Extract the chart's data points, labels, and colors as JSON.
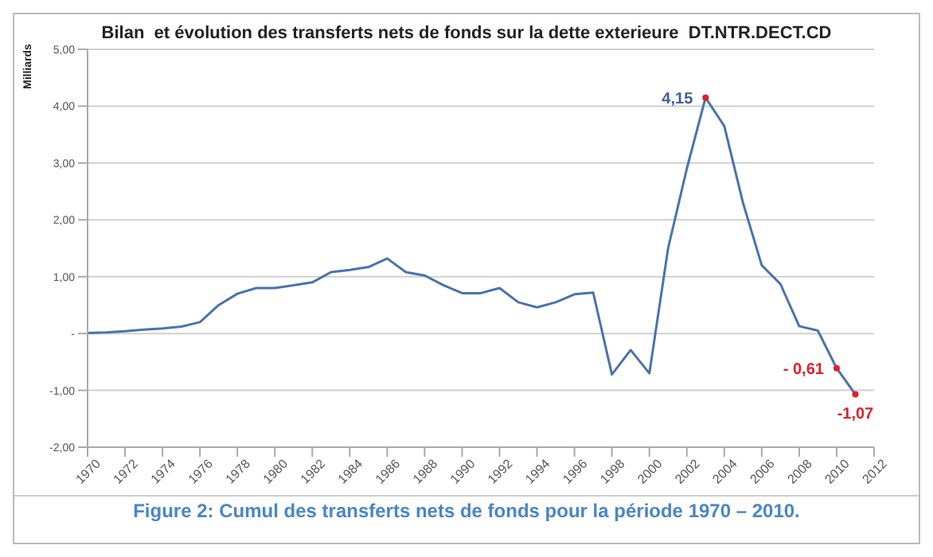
{
  "chart_data": {
    "type": "line",
    "title": "Bilan  et évolution des transferts nets de fonds sur la dette exterieure  DT.NTR.DECT.CD",
    "ylabel": "Milliards",
    "x": [
      1970,
      1971,
      1972,
      1973,
      1974,
      1975,
      1976,
      1977,
      1978,
      1979,
      1980,
      1981,
      1982,
      1983,
      1984,
      1985,
      1986,
      1987,
      1988,
      1989,
      1990,
      1991,
      1992,
      1993,
      1994,
      1995,
      1996,
      1997,
      1998,
      1999,
      2000,
      2001,
      2002,
      2003,
      2004,
      2005,
      2006,
      2007,
      2008,
      2009,
      2010,
      2011
    ],
    "series": [
      {
        "color": "#4a73ad",
        "values": [
          0.01,
          0.02,
          0.04,
          0.07,
          0.09,
          0.12,
          0.2,
          0.5,
          0.7,
          0.8,
          0.8,
          0.85,
          0.9,
          1.08,
          1.12,
          1.17,
          1.32,
          1.08,
          1.02,
          0.85,
          0.71,
          0.71,
          0.8,
          0.55,
          0.46,
          0.55,
          0.69,
          0.72,
          -0.72,
          -0.29,
          -0.7,
          1.5,
          2.9,
          4.15,
          3.65,
          2.3,
          1.2,
          0.87,
          0.13,
          0.05,
          -0.61,
          -1.07
        ]
      }
    ],
    "xlim": [
      1970,
      2012
    ],
    "xticks": [
      1970,
      1972,
      1974,
      1976,
      1978,
      1980,
      1982,
      1984,
      1986,
      1988,
      1990,
      1992,
      1994,
      1996,
      1998,
      2000,
      2002,
      2004,
      2006,
      2008,
      2010,
      2012
    ],
    "ylim": [
      -2,
      5
    ],
    "yticks": [
      {
        "value": -2,
        "label": "-2,00"
      },
      {
        "value": -1,
        "label": "-1,00"
      },
      {
        "value": 0,
        "label": "-"
      },
      {
        "value": 1,
        "label": "1,00"
      },
      {
        "value": 2,
        "label": "2,00"
      },
      {
        "value": 3,
        "label": "3,00"
      },
      {
        "value": 4,
        "label": "4,00"
      },
      {
        "value": 5,
        "label": "5,00"
      }
    ],
    "grid": "y",
    "marker": "none",
    "line_style": "solid",
    "annotations": [
      {
        "text": "4,15",
        "x": 2003,
        "y": 4.15
      },
      {
        "text": "- 0,61",
        "x": 2010,
        "y": -0.61
      },
      {
        "text": "-1,07",
        "x": 2011,
        "y": -1.07
      },
      "Figure 2: Cumul des transferts nets de fonds pour la période 1970 – 2010."
    ]
  }
}
